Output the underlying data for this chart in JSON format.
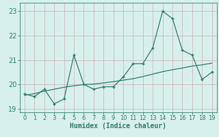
{
  "xlabel": "Humidex (Indice chaleur)",
  "x_values": [
    0,
    1,
    2,
    3,
    4,
    5,
    6,
    7,
    8,
    9,
    10,
    11,
    12,
    13,
    14,
    15,
    16,
    17,
    18,
    19
  ],
  "y_main": [
    19.6,
    19.5,
    19.8,
    19.2,
    19.4,
    21.2,
    20.0,
    19.8,
    19.9,
    19.9,
    20.3,
    20.85,
    20.85,
    21.5,
    23.0,
    22.7,
    21.4,
    21.2,
    20.2,
    20.5
  ],
  "y_trend": [
    19.55,
    19.62,
    19.72,
    19.8,
    19.88,
    19.94,
    19.99,
    20.01,
    20.06,
    20.11,
    20.17,
    20.23,
    20.32,
    20.42,
    20.52,
    20.6,
    20.67,
    20.75,
    20.8,
    20.87
  ],
  "line_color": "#2a7a6a",
  "bg_color": "#d8f0ec",
  "grid_color_h": "#c8b8b8",
  "grid_color_v": "#c8b8b8",
  "text_color": "#2a7a6a",
  "ylim": [
    18.85,
    23.35
  ],
  "yticks": [
    19,
    20,
    21,
    22,
    23
  ],
  "xticks": [
    0,
    1,
    2,
    3,
    4,
    5,
    6,
    7,
    8,
    9,
    10,
    11,
    12,
    13,
    14,
    15,
    16,
    17,
    18,
    19
  ]
}
